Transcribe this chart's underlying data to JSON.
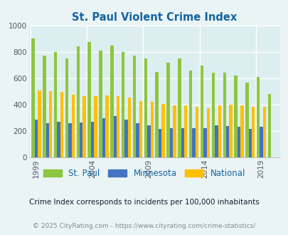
{
  "title": "St. Paul Violent Crime Index",
  "years": [
    1999,
    2000,
    2001,
    2002,
    2003,
    2004,
    2005,
    2006,
    2007,
    2008,
    2009,
    2010,
    2011,
    2012,
    2013,
    2014,
    2015,
    2016,
    2017,
    2018,
    2019,
    2020
  ],
  "stpaul": [
    905,
    775,
    800,
    755,
    845,
    875,
    810,
    850,
    800,
    775,
    755,
    650,
    720,
    750,
    660,
    700,
    645,
    645,
    625,
    570,
    610,
    480
  ],
  "minnesota": [
    285,
    260,
    270,
    260,
    265,
    270,
    300,
    315,
    290,
    260,
    245,
    215,
    225,
    225,
    220,
    225,
    245,
    240,
    235,
    215,
    235,
    0
  ],
  "national": [
    510,
    505,
    500,
    475,
    465,
    465,
    470,
    465,
    455,
    430,
    425,
    405,
    395,
    395,
    385,
    375,
    395,
    400,
    395,
    385,
    385,
    0
  ],
  "stpaul_color": "#8dc63f",
  "minnesota_color": "#4472c4",
  "national_color": "#ffc000",
  "background_color": "#eaf4f4",
  "plot_bg_color": "#ddeef0",
  "ylim": [
    0,
    1000
  ],
  "yticks": [
    0,
    200,
    400,
    600,
    800,
    1000
  ],
  "xtick_years": [
    1999,
    2004,
    2009,
    2014,
    2019
  ],
  "subtitle": "Crime Index corresponds to incidents per 100,000 inhabitants",
  "footer": "© 2025 CityRating.com - https://www.cityrating.com/crime-statistics/",
  "title_color": "#1464a0",
  "subtitle_color": "#1a1a2e",
  "footer_color": "#888888",
  "legend_labels": [
    "St. Paul",
    "Minnesota",
    "National"
  ],
  "legend_label_color": "#1464a0",
  "bar_width": 0.28
}
